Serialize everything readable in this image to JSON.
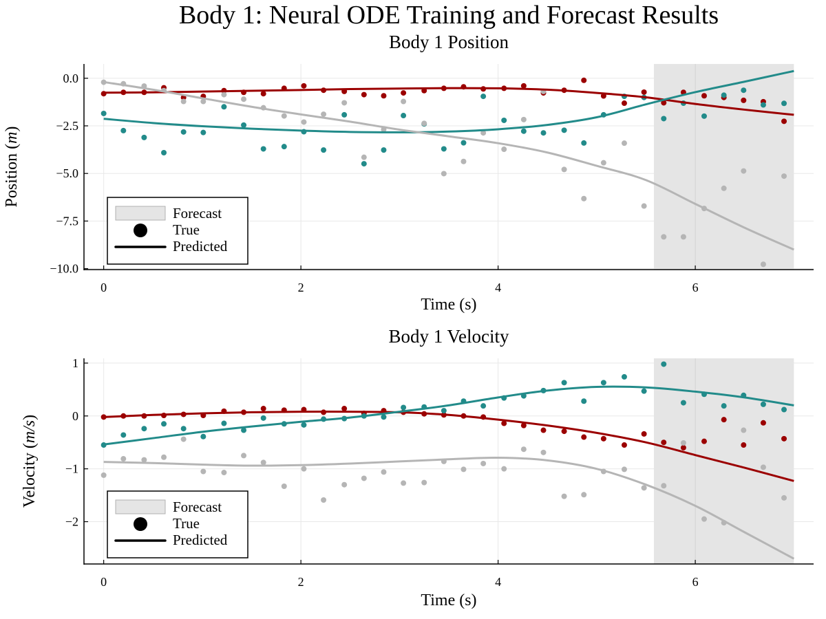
{
  "title": "Body 1: Neural ODE Training and Forecast Results",
  "colors": {
    "series": [
      "#9b0000",
      "#228b8a",
      "#b5b5b5"
    ],
    "forecast_fill": "#e5e5e5",
    "forecast_edge": "#b0b0b0",
    "grid": "#e8e8e8"
  },
  "chart_data": [
    {
      "type": "scatter+line",
      "title": "Body 1 Position",
      "xlabel": "Time (s)",
      "xlabel_parts": [
        "Time (",
        "s",
        ")"
      ],
      "ylabel": "Position (m)",
      "ylabel_parts": [
        "Position (",
        "m",
        ")"
      ],
      "xlim": [
        -0.2,
        7.2
      ],
      "ylim": [
        -10.05,
        0.75
      ],
      "xticks": [
        0,
        2,
        4,
        6
      ],
      "xtick_labels": [
        "0",
        "2",
        "4",
        "6"
      ],
      "yticks": [
        0,
        -2.5,
        -5,
        -7.5,
        -10
      ],
      "ytick_labels": [
        "0.0",
        "−2.5",
        "−5.0",
        "−7.5",
        "−10.0"
      ],
      "grid": true,
      "forecast_region": [
        5.58,
        7.0
      ],
      "legend": {
        "placement": "bottom-left",
        "entries": [
          "Forecast",
          "True",
          "Predicted"
        ]
      },
      "t_true": [
        0,
        0.2,
        0.41,
        0.61,
        0.81,
        1.01,
        1.22,
        1.42,
        1.62,
        1.83,
        2.03,
        2.23,
        2.44,
        2.64,
        2.84,
        3.04,
        3.25,
        3.45,
        3.65,
        3.85,
        4.06,
        4.26,
        4.46,
        4.67,
        4.87,
        5.07,
        5.28,
        5.48,
        5.68,
        5.88,
        6.09,
        6.29,
        6.49,
        6.69,
        6.9
      ],
      "t_pred": [
        0,
        0.5,
        1,
        1.5,
        2,
        2.5,
        3,
        3.5,
        4,
        4.5,
        5,
        5.5,
        6,
        6.5,
        7
      ],
      "series": [
        {
          "color": "#9b0000",
          "true": [
            -0.81,
            -0.74,
            -0.74,
            -0.5,
            -1.01,
            -0.95,
            -0.65,
            -0.74,
            -0.81,
            -0.53,
            -0.4,
            -0.63,
            -0.69,
            -0.86,
            -0.92,
            -0.77,
            -0.65,
            -0.53,
            -0.45,
            -0.56,
            -0.53,
            -0.4,
            -0.77,
            -0.63,
            -0.11,
            -0.93,
            -1.31,
            -0.73,
            -1.29,
            -0.74,
            -0.92,
            -1.01,
            -1.16,
            -1.23,
            -2.26
          ],
          "predicted": [
            -0.76,
            -0.74,
            -0.7,
            -0.66,
            -0.62,
            -0.57,
            -0.54,
            -0.52,
            -0.53,
            -0.6,
            -0.77,
            -1.0,
            -1.35,
            -1.65,
            -1.92
          ]
        },
        {
          "color": "#228b8a",
          "true": [
            -1.85,
            -2.75,
            -3.11,
            -3.91,
            -2.82,
            -2.85,
            -1.5,
            -2.46,
            -3.71,
            -3.59,
            -2.81,
            -3.77,
            -1.92,
            -4.49,
            -3.77,
            -1.96,
            -2.4,
            -3.71,
            -3.39,
            -0.95,
            -2.21,
            -2.78,
            -2.87,
            -2.73,
            -3.4,
            -1.92,
            -0.95,
            -1.01,
            -2.12,
            -1.31,
            -1.99,
            -0.89,
            -0.63,
            -1.4,
            -1.32
          ],
          "predicted": [
            -2.13,
            -2.35,
            -2.52,
            -2.65,
            -2.75,
            -2.82,
            -2.84,
            -2.8,
            -2.68,
            -2.45,
            -2.05,
            -1.37,
            -0.73,
            -0.18,
            0.38
          ]
        },
        {
          "color": "#b5b5b5",
          "true": [
            -0.21,
            -0.29,
            -0.41,
            -0.65,
            -1.22,
            -1.22,
            -0.86,
            -1.1,
            -1.55,
            -1.98,
            -2.3,
            -1.89,
            -1.29,
            -4.15,
            -2.69,
            -1.22,
            -2.37,
            -5.01,
            -4.37,
            -2.87,
            -3.73,
            -2.17,
            -0.69,
            -4.79,
            -6.32,
            -4.44,
            -3.41,
            -6.71,
            -8.33,
            -8.33,
            -6.84,
            -5.78,
            -4.87,
            -9.77,
            -5.14
          ],
          "predicted": [
            -0.2,
            -0.6,
            -1.05,
            -1.5,
            -1.9,
            -2.28,
            -2.7,
            -3.05,
            -3.41,
            -3.9,
            -4.6,
            -5.35,
            -6.6,
            -7.85,
            -9.0
          ]
        }
      ]
    },
    {
      "type": "scatter+line",
      "title": "Body 1 Velocity",
      "xlabel": "Time (s)",
      "xlabel_parts": [
        "Time (",
        "s",
        ")"
      ],
      "ylabel": "Velocity (m/s)",
      "ylabel_parts": [
        "Velocity (",
        "m/s",
        ")"
      ],
      "xlim": [
        -0.2,
        7.2
      ],
      "ylim": [
        -2.8,
        1.09
      ],
      "xticks": [
        0,
        2,
        4,
        6
      ],
      "xtick_labels": [
        "0",
        "2",
        "4",
        "6"
      ],
      "yticks": [
        1,
        0,
        -1,
        -2
      ],
      "ytick_labels": [
        "1",
        "0",
        "−1",
        "−2"
      ],
      "grid": true,
      "forecast_region": [
        5.58,
        7.0
      ],
      "legend": {
        "placement": "bottom-left",
        "entries": [
          "Forecast",
          "True",
          "Predicted"
        ]
      },
      "t_true": [
        0,
        0.2,
        0.41,
        0.61,
        0.81,
        1.01,
        1.22,
        1.42,
        1.62,
        1.83,
        2.03,
        2.23,
        2.44,
        2.64,
        2.84,
        3.04,
        3.25,
        3.45,
        3.65,
        3.85,
        4.06,
        4.26,
        4.46,
        4.67,
        4.87,
        5.07,
        5.28,
        5.48,
        5.68,
        5.88,
        6.09,
        6.29,
        6.49,
        6.69,
        6.9
      ],
      "t_pred": [
        0,
        0.5,
        1,
        1.5,
        2,
        2.5,
        3,
        3.5,
        4,
        4.5,
        5,
        5.5,
        6,
        6.5,
        7
      ],
      "series": [
        {
          "color": "#9b0000",
          "true": [
            -0.02,
            0.0,
            0.0,
            0.01,
            0.03,
            0.01,
            0.09,
            0.07,
            0.14,
            0.11,
            0.12,
            0.07,
            0.14,
            0.05,
            0.1,
            0.07,
            0.04,
            0.02,
            0.0,
            -0.02,
            -0.14,
            -0.18,
            -0.27,
            -0.29,
            -0.4,
            -0.43,
            -0.55,
            -0.34,
            -0.5,
            -0.6,
            -0.48,
            -0.07,
            -0.55,
            -0.13,
            -0.43
          ],
          "predicted": [
            -0.02,
            0.02,
            0.05,
            0.07,
            0.08,
            0.08,
            0.07,
            0.02,
            -0.07,
            -0.18,
            -0.32,
            -0.5,
            -0.74,
            -0.98,
            -1.23
          ]
        },
        {
          "color": "#228b8a",
          "true": [
            -0.55,
            -0.36,
            -0.24,
            -0.15,
            -0.24,
            -0.39,
            -0.14,
            -0.27,
            -0.04,
            -0.15,
            -0.17,
            -0.06,
            -0.05,
            0.0,
            -0.02,
            0.16,
            0.17,
            0.1,
            0.28,
            0.19,
            0.34,
            0.38,
            0.48,
            0.63,
            0.28,
            0.63,
            0.74,
            0.47,
            0.98,
            0.25,
            0.41,
            0.19,
            0.39,
            0.22,
            0.12
          ],
          "predicted": [
            -0.54,
            -0.42,
            -0.3,
            -0.2,
            -0.11,
            -0.03,
            0.08,
            0.2,
            0.35,
            0.48,
            0.55,
            0.54,
            0.46,
            0.35,
            0.2
          ]
        },
        {
          "color": "#b5b5b5",
          "true": [
            -1.12,
            -0.81,
            -0.83,
            -0.78,
            -0.44,
            -1.05,
            -1.07,
            -0.75,
            -0.88,
            -1.33,
            -1.0,
            -1.59,
            -1.3,
            -1.18,
            -1.06,
            -1.27,
            -1.26,
            -0.86,
            -1.01,
            -0.9,
            -1.0,
            -0.63,
            -0.69,
            -1.52,
            -1.49,
            -1.05,
            -1.01,
            -1.36,
            -1.32,
            -0.51,
            -1.95,
            -2.02,
            -0.27,
            -0.97,
            -1.55
          ],
          "predicted": [
            -0.87,
            -0.89,
            -0.92,
            -0.94,
            -0.93,
            -0.9,
            -0.86,
            -0.82,
            -0.79,
            -0.84,
            -1.0,
            -1.3,
            -1.7,
            -2.2,
            -2.7
          ]
        }
      ]
    }
  ]
}
